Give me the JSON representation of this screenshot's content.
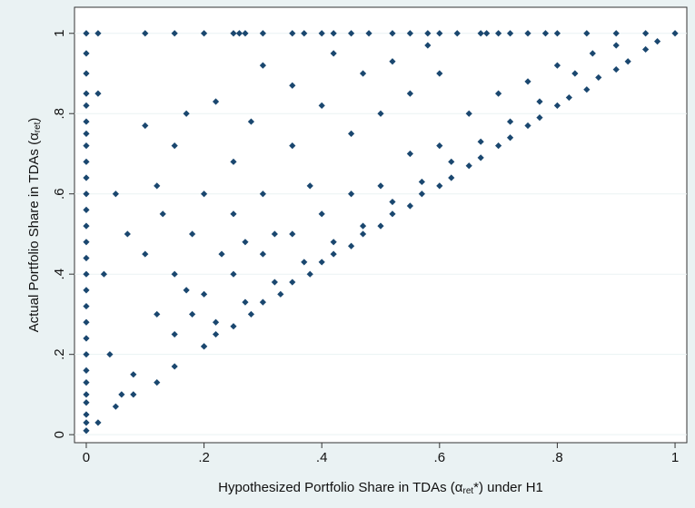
{
  "chart_data": {
    "type": "scatter",
    "x_label": [
      "Hypothesized Portfolio Share in TDAs (α",
      "ret",
      "*) under H1"
    ],
    "y_label": [
      "Actual Portfolio Share in TDAs (α",
      "ret",
      ")"
    ],
    "color": "#1a476f",
    "grid": true,
    "xlim": [
      -0.02,
      1.02
    ],
    "ylim": [
      -0.02,
      1.065
    ],
    "xticks": [
      0,
      {
        "value": 0.2,
        "label": ".2"
      },
      {
        "value": 0.4,
        "label": ".4"
      },
      {
        "value": 0.6,
        "label": ".6"
      },
      {
        "value": 0.8,
        "label": ".8"
      },
      1
    ],
    "yticks": [
      0,
      {
        "value": 0.2,
        "label": ".2"
      },
      {
        "value": 0.4,
        "label": ".4"
      },
      {
        "value": 0.6,
        "label": ".6"
      },
      {
        "value": 0.8,
        "label": ".8"
      },
      1
    ],
    "x": [
      0,
      0,
      0,
      0,
      0,
      0,
      0,
      0,
      0,
      0,
      0,
      0,
      0,
      0,
      0,
      0,
      0,
      0,
      0,
      0,
      0,
      0,
      0,
      0,
      0,
      0,
      0,
      0,
      0.02,
      0.1,
      0.15,
      0.2,
      0.25,
      0.26,
      0.27,
      0.3,
      0.35,
      0.37,
      0.4,
      0.42,
      0.45,
      0.48,
      0.52,
      0.55,
      0.58,
      0.6,
      0.63,
      0.67,
      0.68,
      0.7,
      0.72,
      0.75,
      0.78,
      0.8,
      0.85,
      0.9,
      0.95,
      0.02,
      0.05,
      0.08,
      0.12,
      0.15,
      0.2,
      0.22,
      0.25,
      0.28,
      0.3,
      0.33,
      0.35,
      0.38,
      0.4,
      0.42,
      0.45,
      0.47,
      0.5,
      0.52,
      0.55,
      0.57,
      0.6,
      0.62,
      0.65,
      0.67,
      0.7,
      0.72,
      0.75,
      0.77,
      0.8,
      0.82,
      0.85,
      0.87,
      0.9,
      0.92,
      0.95,
      0.97,
      1,
      0.15,
      0.18,
      0.2,
      0.22,
      0.25,
      0.27,
      0.3,
      0.32,
      0.35,
      0.37,
      0.4,
      0.42,
      0.45,
      0.47,
      0.5,
      0.52,
      0.55,
      0.57,
      0.6,
      0.62,
      0.65,
      0.67,
      0.7,
      0.72,
      0.75,
      0.77,
      0.8,
      0.83,
      0.86,
      0.9,
      0.02,
      0.03,
      0.05,
      0.04,
      0.08,
      0.1,
      0.1,
      0.12,
      0.13,
      0.15,
      0.15,
      0.17,
      0.18,
      0.2,
      0.2,
      0.22,
      0.23,
      0.25,
      0.25,
      0.28,
      0.3,
      0.3,
      0.32,
      0.35,
      0.35,
      0.38,
      0.4,
      0.42,
      0.45,
      0.47,
      0.5,
      0.52,
      0.55,
      0.58,
      0.6,
      0.12,
      0.07,
      0.06,
      0.17,
      0.27
    ],
    "values": [
      0.01,
      0.03,
      0.05,
      0.08,
      0.1,
      0.13,
      0.16,
      0.2,
      0.24,
      0.28,
      0.32,
      0.36,
      0.4,
      0.44,
      0.48,
      0.52,
      0.56,
      0.6,
      0.64,
      0.68,
      0.72,
      0.75,
      0.78,
      0.82,
      0.85,
      0.9,
      0.95,
      1,
      1,
      1,
      1,
      1,
      1,
      1,
      1,
      1,
      1,
      1,
      1,
      1,
      1,
      1,
      1,
      1,
      1,
      1,
      1,
      1,
      1,
      1,
      1,
      1,
      1,
      1,
      1,
      1,
      1,
      0.03,
      0.07,
      0.1,
      0.13,
      0.17,
      0.22,
      0.25,
      0.27,
      0.3,
      0.33,
      0.35,
      0.38,
      0.4,
      0.43,
      0.45,
      0.47,
      0.5,
      0.52,
      0.55,
      0.57,
      0.6,
      0.62,
      0.64,
      0.67,
      0.69,
      0.72,
      0.74,
      0.77,
      0.79,
      0.82,
      0.84,
      0.86,
      0.89,
      0.91,
      0.93,
      0.96,
      0.98,
      1,
      0.25,
      0.3,
      0.35,
      0.28,
      0.4,
      0.33,
      0.45,
      0.38,
      0.5,
      0.43,
      0.55,
      0.48,
      0.6,
      0.52,
      0.62,
      0.58,
      0.7,
      0.63,
      0.72,
      0.68,
      0.8,
      0.73,
      0.85,
      0.78,
      0.88,
      0.83,
      0.92,
      0.9,
      0.95,
      0.97,
      0.85,
      0.4,
      0.6,
      0.2,
      0.15,
      0.45,
      0.77,
      0.3,
      0.55,
      0.72,
      0.4,
      0.8,
      0.5,
      0.6,
      0.22,
      0.83,
      0.45,
      0.68,
      0.55,
      0.78,
      0.6,
      0.92,
      0.5,
      0.72,
      0.87,
      0.62,
      0.82,
      0.95,
      0.75,
      0.9,
      0.8,
      0.93,
      0.85,
      0.97,
      0.9,
      0.62,
      0.5,
      0.1,
      0.36,
      0.48
    ]
  }
}
